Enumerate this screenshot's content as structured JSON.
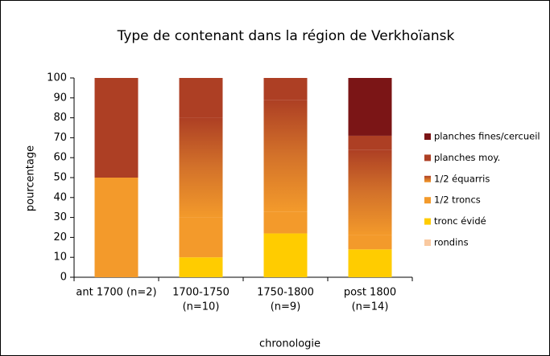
{
  "chart_data": {
    "type": "stacked_bar",
    "title": "Type de contenant dans la région de Verkhoïansk",
    "xlabel": "chronologie",
    "ylabel": "pourcentage",
    "categories": [
      [
        "ant 1700 (n=2)"
      ],
      [
        "1700-1750",
        "(n=10)"
      ],
      [
        "1750-1800",
        "(n=9)"
      ],
      [
        "post 1800",
        "(n=14)"
      ]
    ],
    "series": [
      {
        "name": "rondins",
        "color": "#f9c9a0",
        "values": [
          0,
          0,
          0,
          0
        ]
      },
      {
        "name": "tronc évidé",
        "color": "#ffcc00",
        "values": [
          0,
          10,
          22,
          14
        ]
      },
      {
        "name": "1/2 troncs",
        "color": "#f39a2b",
        "values": [
          50,
          20,
          11,
          7
        ]
      },
      {
        "name": "1/2 équarris",
        "color": "#d3722a",
        "values": [
          0,
          50,
          56,
          43
        ]
      },
      {
        "name": "planches moy.",
        "color": "#ad3f24",
        "values": [
          50,
          20,
          11,
          7
        ]
      },
      {
        "name": "planches fines/cercueil",
        "color": "#7b1516",
        "values": [
          0,
          0,
          0,
          29
        ]
      }
    ],
    "ylim": [
      0,
      100
    ],
    "yticks": [
      0,
      10,
      20,
      30,
      40,
      50,
      60,
      70,
      80,
      90,
      100
    ],
    "legend": "right",
    "grid": false
  }
}
